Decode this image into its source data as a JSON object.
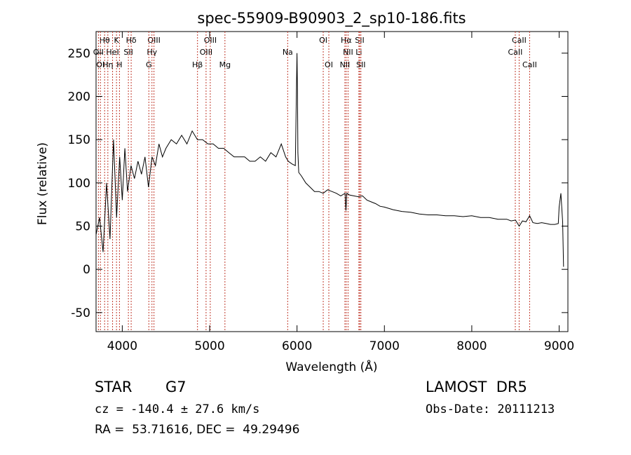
{
  "colors": {
    "axis": "#000000",
    "spectrum": "#000000",
    "line_marker": "#c0392b",
    "background": "#ffffff"
  },
  "chart_data": {
    "type": "line",
    "title": "spec-55909-B90903_2_sp10-186.fits",
    "xlabel": "Wavelength (Å)",
    "ylabel": "Flux (relative)",
    "xlim": [
      3700,
      9100
    ],
    "ylim": [
      -72,
      275
    ],
    "xticks": [
      4000,
      5000,
      6000,
      7000,
      8000,
      9000
    ],
    "yticks": [
      -50,
      0,
      50,
      100,
      150,
      200,
      250
    ],
    "grid": false,
    "series": [
      {
        "x": [
          3700,
          3740,
          3780,
          3820,
          3860,
          3900,
          3935,
          3970,
          4000,
          4030,
          4060,
          4100,
          4140,
          4180,
          4220,
          4260,
          4300,
          4340,
          4380,
          4420,
          4460,
          4500,
          4560,
          4620,
          4680,
          4740,
          4800,
          4860,
          4920,
          4980,
          5040,
          5100,
          5160,
          5220,
          5280,
          5340,
          5400,
          5460,
          5520,
          5580,
          5640,
          5700,
          5760,
          5820,
          5870,
          5900,
          5940,
          5980,
          6000,
          6005,
          6010,
          6020,
          6050,
          6100,
          6150,
          6200,
          6250,
          6300,
          6350,
          6400,
          6450,
          6500,
          6550,
          6560,
          6570,
          6600,
          6650,
          6700,
          6750,
          6800,
          6850,
          6900,
          6950,
          7000,
          7100,
          7200,
          7300,
          7400,
          7500,
          7600,
          7700,
          7800,
          7900,
          8000,
          8100,
          8200,
          8300,
          8400,
          8450,
          8500,
          8542,
          8580,
          8620,
          8662,
          8700,
          8750,
          8800,
          8850,
          8900,
          8950,
          8990,
          9000,
          9020,
          9040,
          9050
        ],
        "y": [
          40,
          60,
          20,
          100,
          35,
          150,
          60,
          130,
          80,
          140,
          90,
          120,
          105,
          125,
          110,
          130,
          95,
          130,
          120,
          145,
          130,
          140,
          150,
          145,
          155,
          145,
          160,
          150,
          150,
          145,
          145,
          140,
          140,
          135,
          130,
          130,
          130,
          125,
          125,
          130,
          125,
          135,
          130,
          145,
          130,
          125,
          122,
          120,
          250,
          205,
          135,
          112,
          108,
          100,
          95,
          90,
          90,
          88,
          92,
          90,
          88,
          85,
          88,
          68,
          88,
          86,
          85,
          84,
          85,
          80,
          78,
          76,
          73,
          72,
          69,
          67,
          66,
          64,
          63,
          63,
          62,
          62,
          61,
          62,
          60,
          60,
          58,
          58,
          56,
          57,
          50,
          56,
          55,
          62,
          54,
          53,
          54,
          53,
          52,
          52,
          53,
          72,
          88,
          55,
          3
        ]
      }
    ],
    "line_markers": [
      {
        "label": "Hθ",
        "x": 3798,
        "row": 0
      },
      {
        "label": "K",
        "x": 3934,
        "row": 0
      },
      {
        "label": "Hδ",
        "x": 4102,
        "row": 0
      },
      {
        "label": "OIII",
        "x": 4363,
        "row": 0
      },
      {
        "label": "OIII",
        "x": 5007,
        "row": 0
      },
      {
        "label": "OI",
        "x": 6300,
        "row": 0
      },
      {
        "label": "Hα",
        "x": 6563,
        "row": 0
      },
      {
        "label": "SII",
        "x": 6717,
        "row": 0
      },
      {
        "label": "CaII",
        "x": 8542,
        "row": 0
      },
      {
        "label": "OII",
        "x": 3727,
        "row": 1
      },
      {
        "label": "HeI",
        "x": 3889,
        "row": 1
      },
      {
        "label": "SII",
        "x": 4070,
        "row": 1
      },
      {
        "label": "Hγ",
        "x": 4340,
        "row": 1
      },
      {
        "label": "OIII",
        "x": 4959,
        "row": 1
      },
      {
        "label": "Na",
        "x": 5893,
        "row": 1
      },
      {
        "label": "NII",
        "x": 6584,
        "row": 1
      },
      {
        "label": "Li",
        "x": 6708,
        "row": 1
      },
      {
        "label": "CaII",
        "x": 8498,
        "row": 1
      },
      {
        "label": "OI",
        "x": 3750,
        "row": 2
      },
      {
        "label": "Hη",
        "x": 3835,
        "row": 2
      },
      {
        "label": "H",
        "x": 3968,
        "row": 2
      },
      {
        "label": "G",
        "x": 4304,
        "row": 2
      },
      {
        "label": "Hβ",
        "x": 4861,
        "row": 2
      },
      {
        "label": "Mg",
        "x": 5175,
        "row": 2
      },
      {
        "label": "OI",
        "x": 6364,
        "row": 2
      },
      {
        "label": "NII",
        "x": 6548,
        "row": 2
      },
      {
        "label": "SII",
        "x": 6731,
        "row": 2
      },
      {
        "label": "CaII",
        "x": 8662,
        "row": 2
      }
    ]
  },
  "info": {
    "object_class": "STAR",
    "subclass": "G7",
    "survey": "LAMOST  DR5",
    "redshift_line": "cz = -140.4 ± 27.6 km/s",
    "obs_date_line": "Obs-Date: 20111213",
    "coords_line": "RA =  53.71616, DEC =  49.29496"
  }
}
